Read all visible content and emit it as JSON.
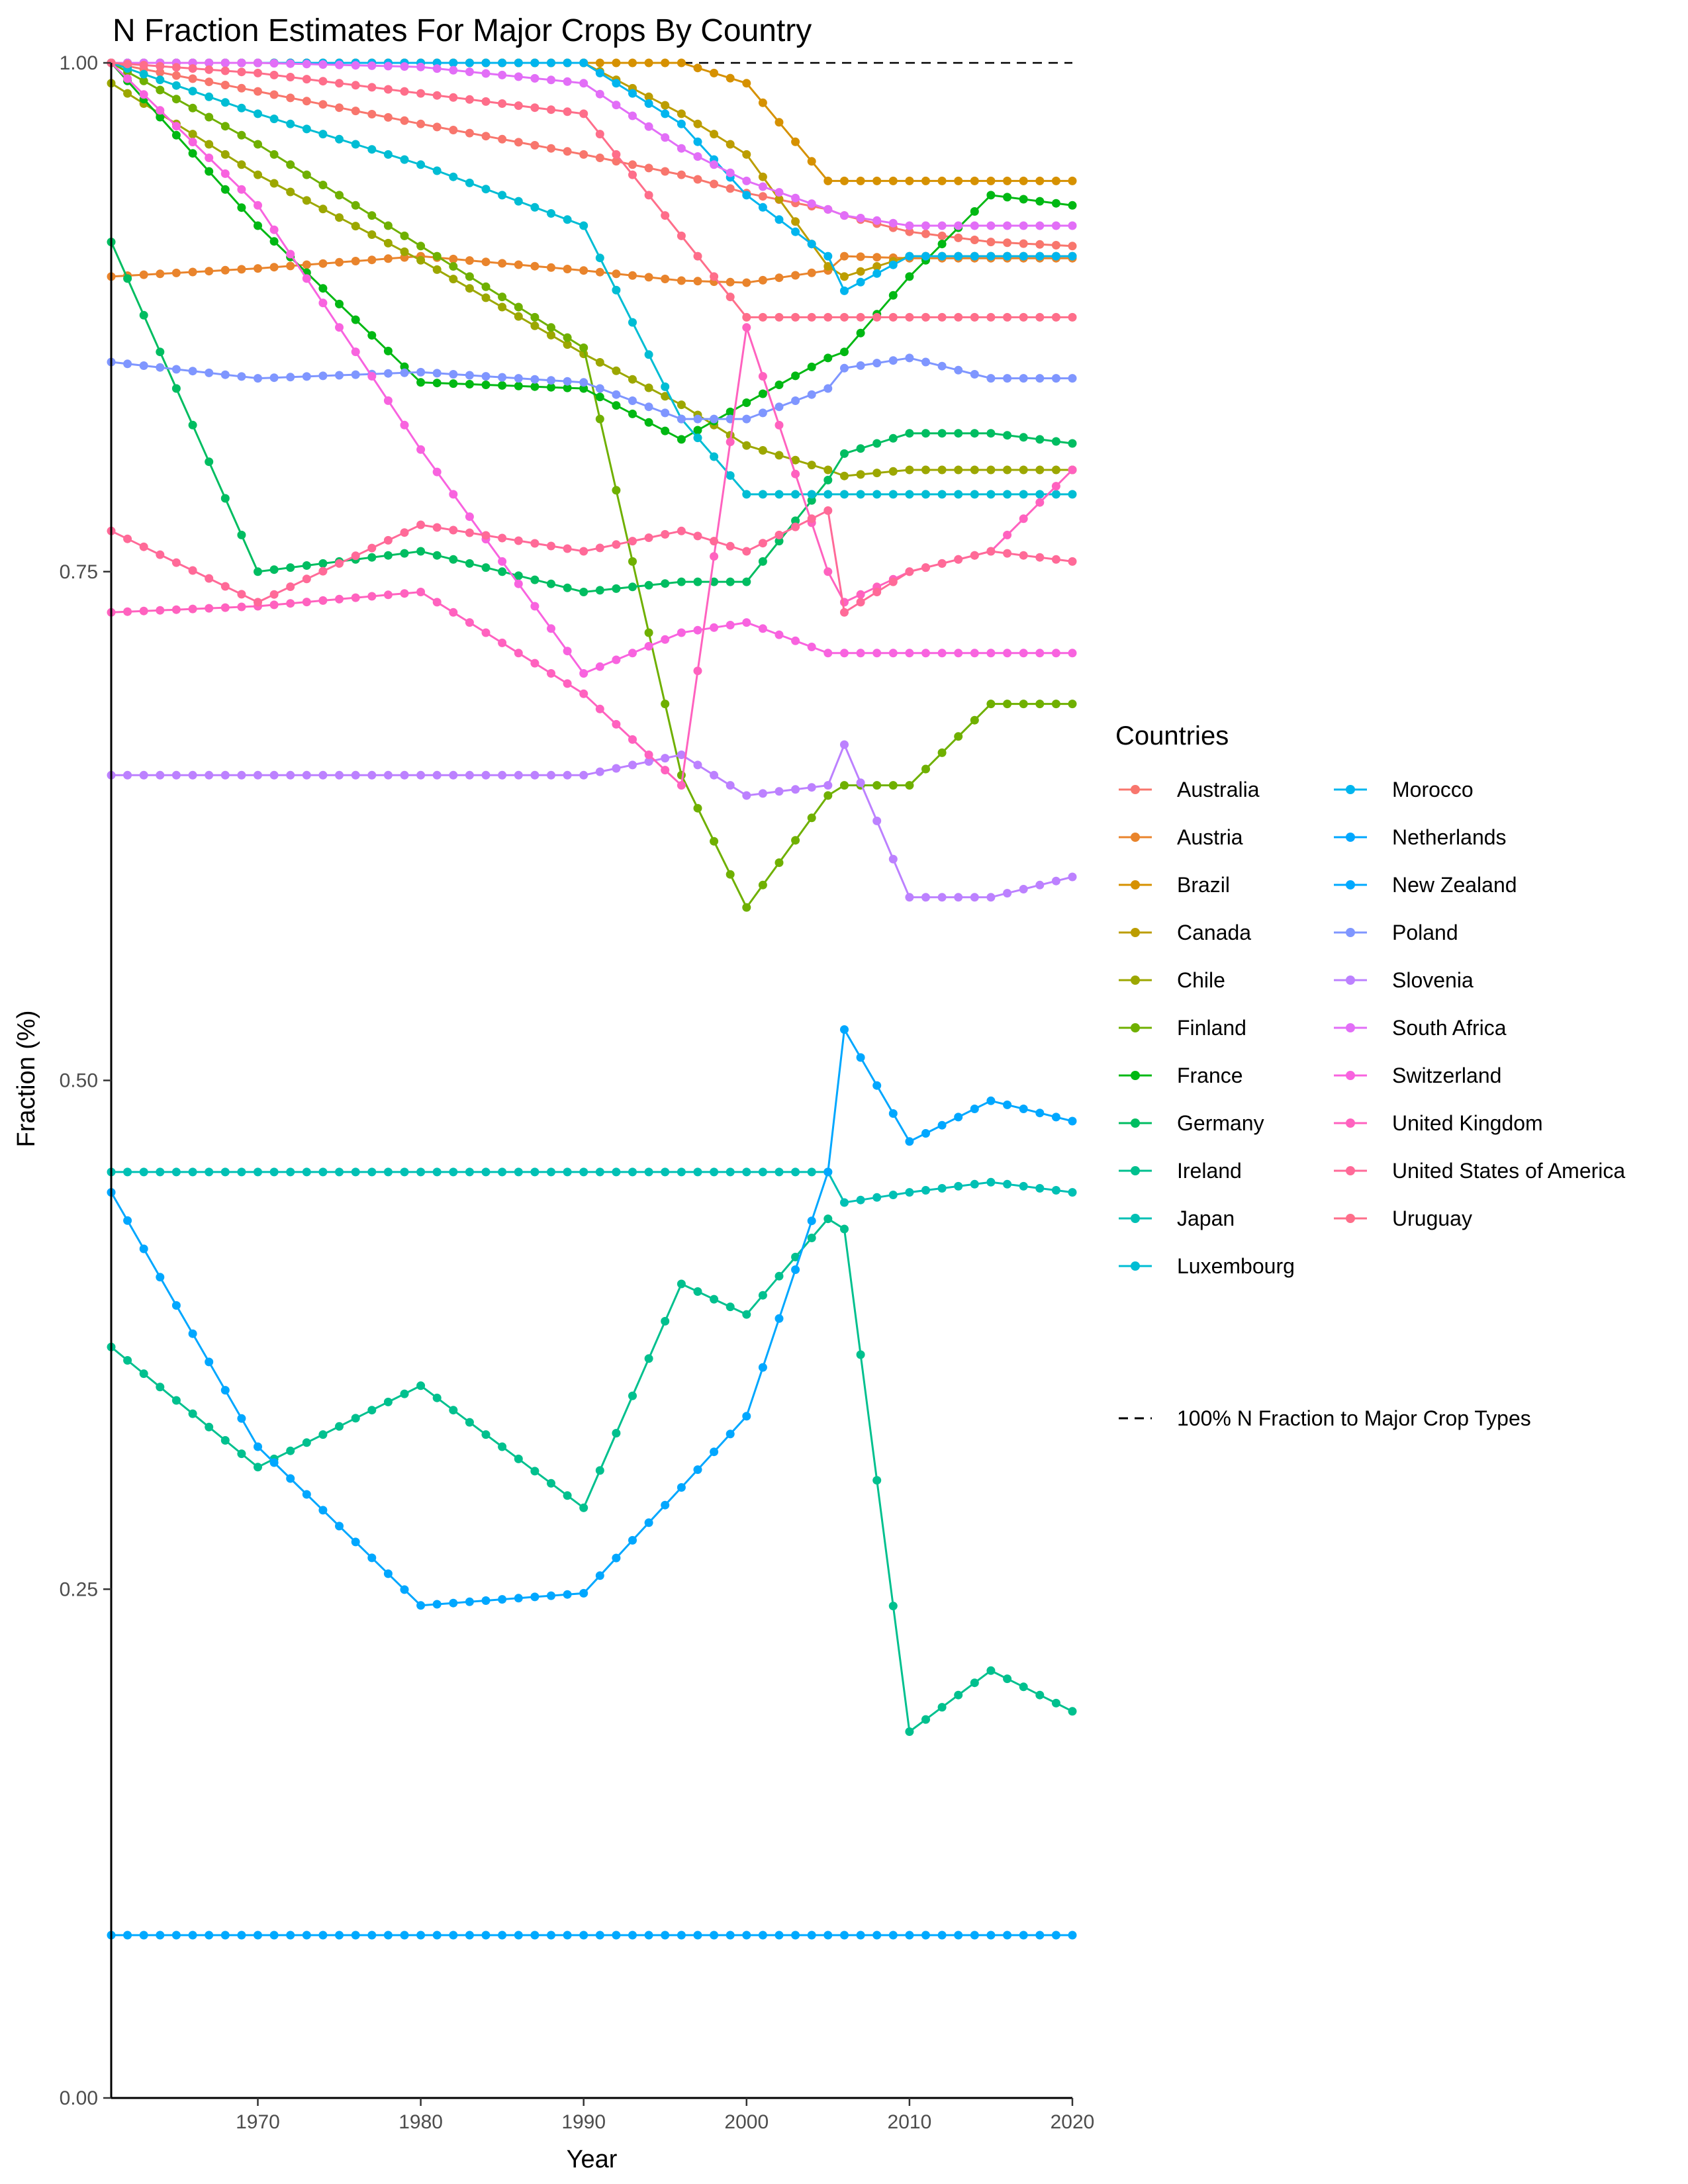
{
  "chart_data": {
    "type": "line",
    "title": "N Fraction Estimates For Major Crops By Country",
    "xlabel": "Year",
    "ylabel": "Fraction (%)",
    "xlim": [
      1961,
      2020
    ],
    "ylim": [
      0,
      1
    ],
    "x_ticks": [
      1970,
      1980,
      1990,
      2000,
      2010,
      2020
    ],
    "y_ticks": [
      0.0,
      0.25,
      0.5,
      0.75,
      1.0
    ],
    "x_tick_labels": [
      "1970",
      "1980",
      "1990",
      "2000",
      "2010",
      "2020"
    ],
    "y_tick_labels": [
      "0.00",
      "0.25",
      "0.50",
      "0.75",
      "1.00"
    ],
    "grid": false,
    "legend_title": "Countries",
    "legend_position": "right",
    "reference_line": {
      "y": 1.0,
      "style": "dashed",
      "color": "#000000",
      "label": "100% N Fraction to Major Crop Types"
    },
    "anchor_years": [
      1961,
      1970,
      1980,
      1990,
      1996,
      2000,
      2005,
      2006,
      2010,
      2015,
      2020
    ],
    "series": [
      {
        "name": "Australia",
        "color": "#F8766D",
        "values": [
          1.0,
          0.986,
          0.97,
          0.955,
          0.945,
          0.936,
          0.928,
          0.925,
          0.917,
          0.912,
          0.91
        ]
      },
      {
        "name": "Austria",
        "color": "#E9842C",
        "values": [
          0.895,
          0.899,
          0.905,
          0.898,
          0.893,
          0.892,
          0.898,
          0.905,
          0.904,
          0.904,
          0.904
        ]
      },
      {
        "name": "Brazil",
        "color": "#D69100",
        "values": [
          1.0,
          1.0,
          1.0,
          1.0,
          1.0,
          0.99,
          0.942,
          0.942,
          0.942,
          0.942,
          0.942
        ]
      },
      {
        "name": "Canada",
        "color": "#BC9D00",
        "values": [
          1.0,
          1.0,
          1.0,
          1.0,
          0.975,
          0.955,
          0.9,
          0.895,
          0.905,
          0.905,
          0.905
        ]
      },
      {
        "name": "Chile",
        "color": "#9CA700",
        "values": [
          0.99,
          0.945,
          0.903,
          0.857,
          0.832,
          0.812,
          0.8,
          0.797,
          0.8,
          0.8,
          0.8
        ]
      },
      {
        "name": "Finland",
        "color": "#6FB000",
        "values": [
          1.0,
          0.96,
          0.91,
          0.86,
          0.65,
          0.585,
          0.64,
          0.645,
          0.645,
          0.685,
          0.685
        ]
      },
      {
        "name": "France",
        "color": "#00B813",
        "values": [
          1.0,
          0.92,
          0.843,
          0.84,
          0.815,
          0.833,
          0.855,
          0.858,
          0.895,
          0.935,
          0.93
        ]
      },
      {
        "name": "Germany",
        "color": "#00BD61",
        "values": [
          0.912,
          0.75,
          0.76,
          0.74,
          0.745,
          0.745,
          0.795,
          0.808,
          0.818,
          0.818,
          0.813
        ]
      },
      {
        "name": "Ireland",
        "color": "#00C08E",
        "values": [
          0.369,
          0.31,
          0.35,
          0.29,
          0.4,
          0.385,
          0.432,
          0.427,
          0.18,
          0.21,
          0.19
        ]
      },
      {
        "name": "Japan",
        "color": "#00C0B4",
        "values": [
          0.455,
          0.455,
          0.455,
          0.455,
          0.455,
          0.455,
          0.455,
          0.44,
          0.445,
          0.45,
          0.445
        ]
      },
      {
        "name": "Luxembourg",
        "color": "#00BDD4",
        "values": [
          1.0,
          0.975,
          0.95,
          0.92,
          0.825,
          0.788,
          0.788,
          0.788,
          0.788,
          0.788,
          0.788
        ]
      },
      {
        "name": "Morocco",
        "color": "#00B5EE",
        "values": [
          1.0,
          1.0,
          1.0,
          1.0,
          0.97,
          0.935,
          0.905,
          0.888,
          0.905,
          0.905,
          0.905
        ]
      },
      {
        "name": "Netherlands",
        "color": "#00A7FF",
        "values": [
          0.445,
          0.32,
          0.242,
          0.248,
          0.3,
          0.335,
          0.455,
          0.525,
          0.47,
          0.49,
          0.48
        ]
      },
      {
        "name": "New Zealand",
        "color": "#00A9FF",
        "values": [
          0.08,
          0.08,
          0.08,
          0.08,
          0.08,
          0.08,
          0.08,
          0.08,
          0.08,
          0.08,
          0.08
        ]
      },
      {
        "name": "Poland",
        "color": "#7F96FF",
        "values": [
          0.853,
          0.845,
          0.848,
          0.843,
          0.825,
          0.825,
          0.84,
          0.85,
          0.855,
          0.845,
          0.845
        ]
      },
      {
        "name": "Slovenia",
        "color": "#BC81FF",
        "values": [
          0.65,
          0.65,
          0.65,
          0.65,
          0.66,
          0.64,
          0.645,
          0.665,
          0.59,
          0.59,
          0.6
        ]
      },
      {
        "name": "South Africa",
        "color": "#E26EF7",
        "values": [
          1.0,
          1.0,
          0.998,
          0.99,
          0.958,
          0.942,
          0.928,
          0.925,
          0.92,
          0.92,
          0.92
        ]
      },
      {
        "name": "Switzerland",
        "color": "#F863DF",
        "values": [
          1.0,
          0.93,
          0.81,
          0.7,
          0.72,
          0.725,
          0.71,
          0.71,
          0.71,
          0.71,
          0.71
        ]
      },
      {
        "name": "United Kingdom",
        "color": "#FF62BF",
        "values": [
          0.73,
          0.733,
          0.74,
          0.69,
          0.645,
          0.87,
          0.75,
          0.735,
          0.75,
          0.76,
          0.8
        ]
      },
      {
        "name": "United States of America",
        "color": "#FF6A98",
        "values": [
          0.77,
          0.735,
          0.773,
          0.76,
          0.77,
          0.76,
          0.78,
          0.73,
          0.75,
          0.76,
          0.755
        ]
      },
      {
        "name": "Uruguay",
        "color": "#FE6E8A",
        "values": [
          1.0,
          0.995,
          0.985,
          0.975,
          0.915,
          0.875,
          0.875,
          0.875,
          0.875,
          0.875,
          0.875
        ]
      }
    ]
  }
}
